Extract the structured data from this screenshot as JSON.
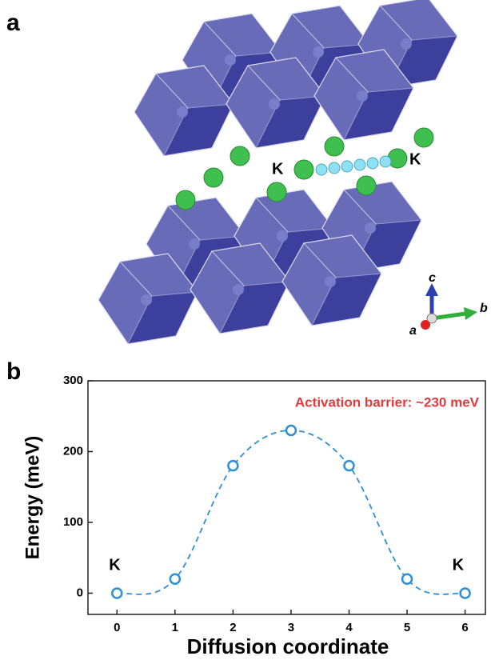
{
  "panel_a": {
    "label": "a",
    "atom_labels": [
      "K",
      "K"
    ],
    "axis_labels": [
      "c",
      "b",
      "a"
    ]
  },
  "chart_data": {
    "type": "line",
    "panel_label": "b",
    "x_label": "Diffusion coordinate",
    "y_label": "Energy (meV)",
    "annotation": "Activation barrier: ~230 meV",
    "point_labels": [
      "K",
      "K"
    ],
    "x": [
      0,
      1,
      2,
      3,
      4,
      5,
      6
    ],
    "series": [
      {
        "color": "#2e8fd6",
        "values": [
          0,
          20,
          180,
          230,
          180,
          20,
          0
        ]
      }
    ],
    "xlim": [
      -0.5,
      6.35
    ],
    "ylim": [
      -30,
      300
    ],
    "xticks": [
      0,
      1,
      2,
      3,
      4,
      5,
      6
    ],
    "yticks": [
      0,
      100,
      200,
      300
    ],
    "annotation_color": "#e03a3a"
  }
}
